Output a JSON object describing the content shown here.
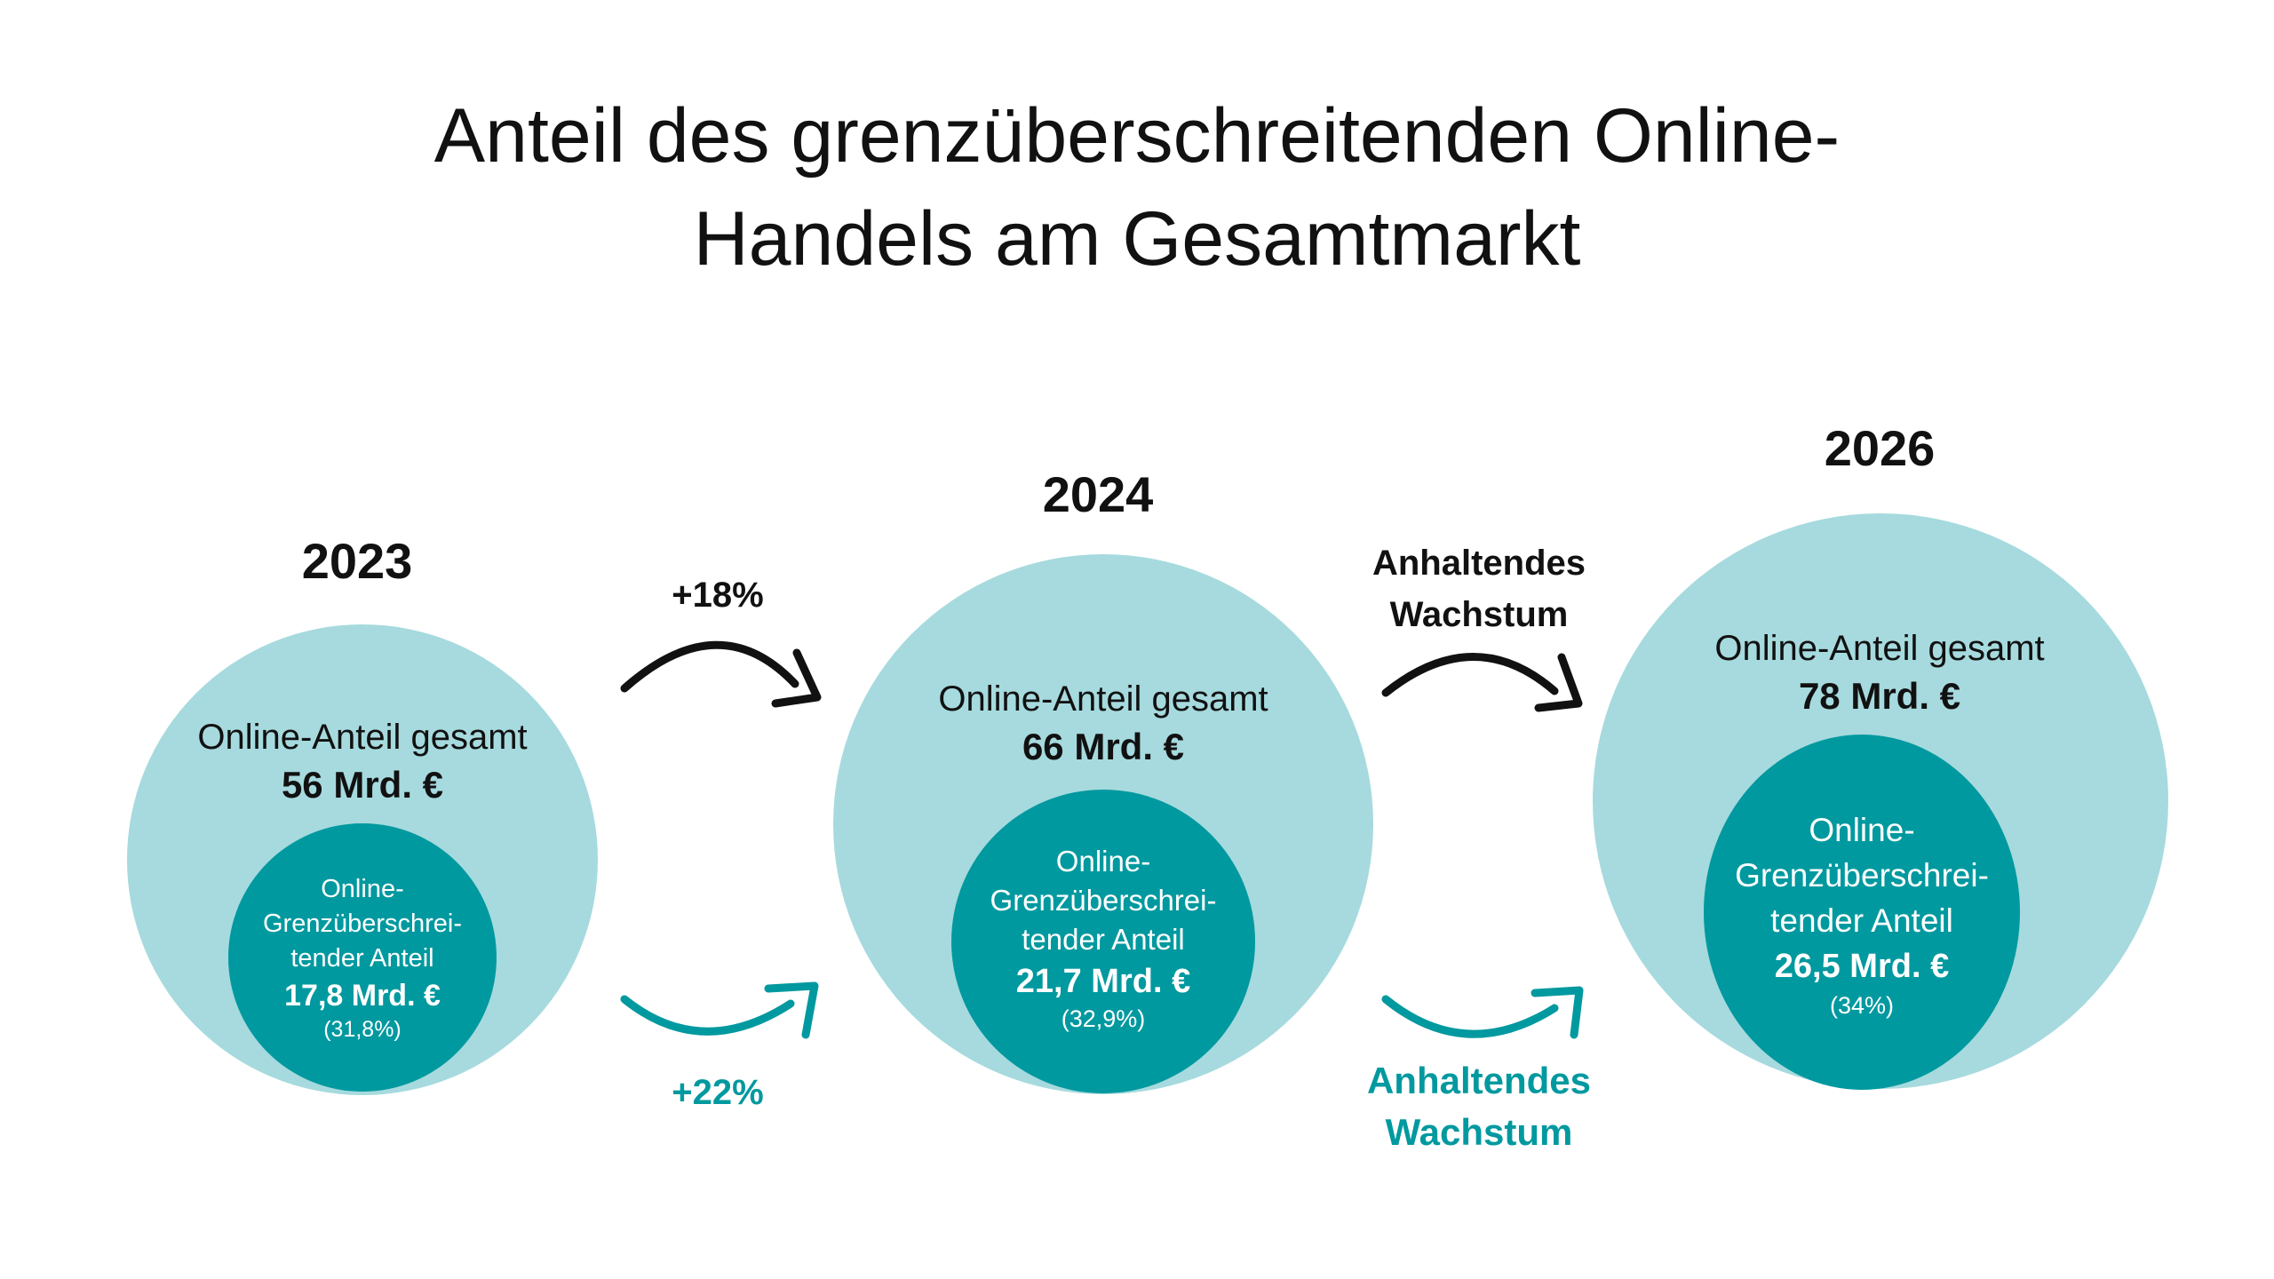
{
  "title": {
    "line1": "Anteil des grenzüberschreitenden Online-",
    "line2": "Handels am Gesamtmarkt"
  },
  "colors": {
    "outer": "#a6dade",
    "inner": "#00999f",
    "growth_teal": "#00999f",
    "text": "#111111"
  },
  "years": [
    {
      "year": "2023",
      "outer_label": "Online-Anteil gesamt",
      "outer_value": "56 Mrd. €",
      "inner_line1": "Online-",
      "inner_line2": "Grenzüberschrei-",
      "inner_line3": "tender Anteil",
      "inner_value": "17,8 Mrd. €",
      "inner_share": "(31,8%)"
    },
    {
      "year": "2024",
      "outer_label": "Online-Anteil gesamt",
      "outer_value": "66 Mrd. €",
      "inner_line1": "Online-",
      "inner_line2": "Grenzüberschrei-",
      "inner_line3": "tender Anteil",
      "inner_value": "21,7 Mrd. €",
      "inner_share": "(32,9%)"
    },
    {
      "year": "2026",
      "outer_label": "Online-Anteil gesamt",
      "outer_value": "78 Mrd. €",
      "inner_line1": "Online-",
      "inner_line2": "Grenzüberschrei-",
      "inner_line3": "tender Anteil",
      "inner_value": "26,5 Mrd. €",
      "inner_share": "(34%)"
    }
  ],
  "growth": {
    "total_2023_2024": "+18%",
    "cross_2023_2024": "+22%",
    "total_2024_2026_line1": "Anhaltendes",
    "total_2024_2026_line2": "Wachstum",
    "cross_2024_2026_line1": "Anhaltendes",
    "cross_2024_2026_line2": "Wachstum"
  }
}
